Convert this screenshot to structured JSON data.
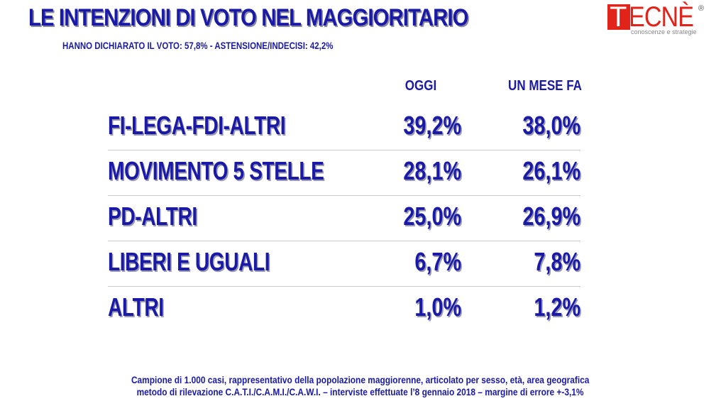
{
  "header": {
    "title": "LE INTENZIONI DI VOTO NEL MAGGIORITARIO",
    "subtitle": "HANNO DICHIARATO IL VOTO: 57,8% - ASTENSIONE/INDECISI: 42,2%"
  },
  "logo": {
    "mark": "T",
    "word": "ECNÈ",
    "registered": "®",
    "tagline": "conoscenze e strategie"
  },
  "chart_data": {
    "type": "table",
    "columns": [
      "OGGI",
      "UN MESE FA"
    ],
    "rows": [
      {
        "label": "FI-LEGA-FDI-ALTRI",
        "oggi": "39,2%",
        "mese_fa": "38,0%"
      },
      {
        "label": "MOVIMENTO 5 STELLE",
        "oggi": "28,1%",
        "mese_fa": "26,1%"
      },
      {
        "label": "PD-ALTRI",
        "oggi": "25,0%",
        "mese_fa": "26,9%"
      },
      {
        "label": "LIBERI E UGUALI",
        "oggi": "6,7%",
        "mese_fa": "7,8%"
      },
      {
        "label": "ALTRI",
        "oggi": "1,0%",
        "mese_fa": "1,2%"
      }
    ],
    "values_oggi": [
      39.2,
      28.1,
      25.0,
      6.7,
      1.0
    ],
    "values_mese_fa": [
      38.0,
      26.1,
      26.9,
      7.8,
      1.2
    ]
  },
  "footer": {
    "line1": "Campione di 1.000 casi, rappresentativo della popolazione maggiorenne, articolato per sesso, età, area geografica",
    "line2": "metodo di rilevazione C.A.T.I./C.A.M.I./C.A.W.I. – interviste effettuate l’8 gennaio 2018 – margine di errore +-3,1%"
  },
  "colors": {
    "text": "#1a1aa6",
    "brand": "#e2231a"
  }
}
